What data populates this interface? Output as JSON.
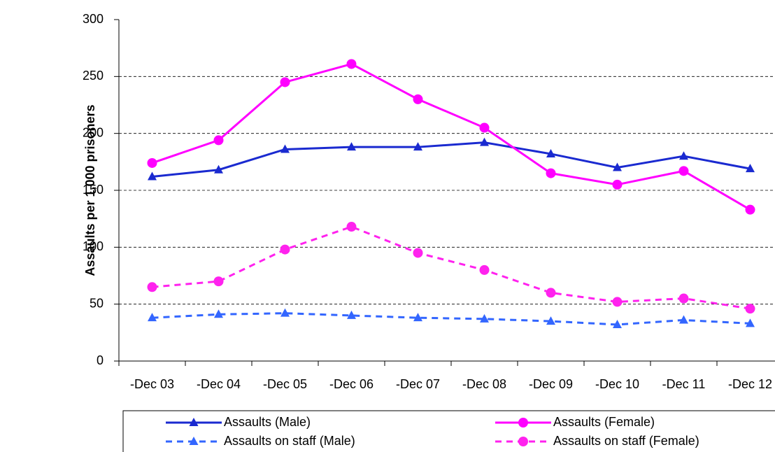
{
  "chart_data": {
    "type": "line",
    "y_label": "Assaults per 1,000 prisoners",
    "categories": [
      "-Dec 03",
      "-Dec 04",
      "-Dec 05",
      "-Dec 06",
      "-Dec 07",
      "-Dec 08",
      "-Dec 09",
      "-Dec 10",
      "-Dec 11",
      "-Dec 12"
    ],
    "series": [
      {
        "name": "Assaults (Male)",
        "color": "#1a2ad0",
        "marker": "triangle",
        "dash": false,
        "values": [
          162,
          168,
          186,
          188,
          188,
          192,
          182,
          170,
          180,
          169
        ]
      },
      {
        "name": "Assaults (Female)",
        "color": "#ff00ff",
        "marker": "circle",
        "dash": false,
        "values": [
          174,
          194,
          245,
          261,
          230,
          205,
          165,
          155,
          167,
          133
        ]
      },
      {
        "name": "Assaults on staff (Male)",
        "color": "#3366ff",
        "marker": "triangle",
        "dash": true,
        "values": [
          38,
          41,
          42,
          40,
          38,
          37,
          35,
          32,
          36,
          33
        ]
      },
      {
        "name": "Assaults on staff (Female)",
        "color": "#ff22ee",
        "marker": "circle",
        "dash": true,
        "values": [
          65,
          70,
          98,
          118,
          95,
          80,
          60,
          52,
          55,
          46
        ]
      }
    ],
    "ylim": [
      0,
      300
    ],
    "yticks": [
      0,
      50,
      100,
      150,
      200,
      250,
      300
    ],
    "grid": true
  }
}
